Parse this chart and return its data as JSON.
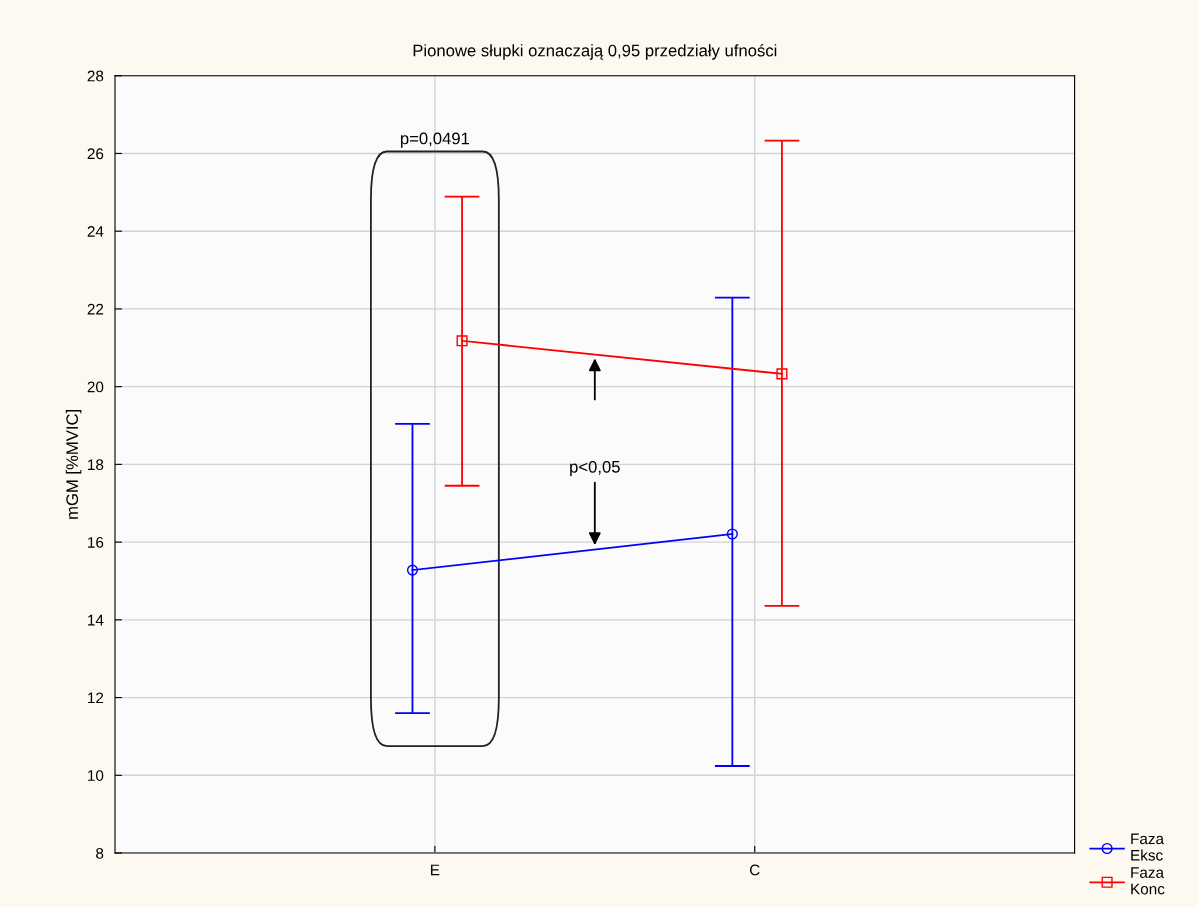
{
  "chart_data": {
    "type": "line",
    "title": "Pionowe słupki oznaczają 0,95 przedziały ufności",
    "ylabel": "mGM [%MVIC]",
    "categories": [
      "E",
      "C"
    ],
    "series": [
      {
        "name": "Faza\nEksc",
        "color": "#0000ff",
        "values": [
          15.28,
          16.21
        ],
        "errors": [
          [
            11.6,
            19.04
          ],
          [
            10.24,
            22.29
          ]
        ],
        "marker": "circle"
      },
      {
        "name": "Faza\nKonc",
        "color": "#ff0000",
        "values": [
          21.18,
          20.33
        ],
        "errors": [
          [
            17.45,
            24.89
          ],
          [
            14.36,
            26.33
          ]
        ],
        "marker": "square"
      }
    ],
    "ylim": [
      8,
      28
    ],
    "yticks": [
      8,
      10,
      12,
      14,
      16,
      18,
      20,
      22,
      24,
      26,
      28
    ],
    "grid": true,
    "legend": "bottom right",
    "annotations": [
      "p=0,0491",
      "p<0,05"
    ]
  }
}
